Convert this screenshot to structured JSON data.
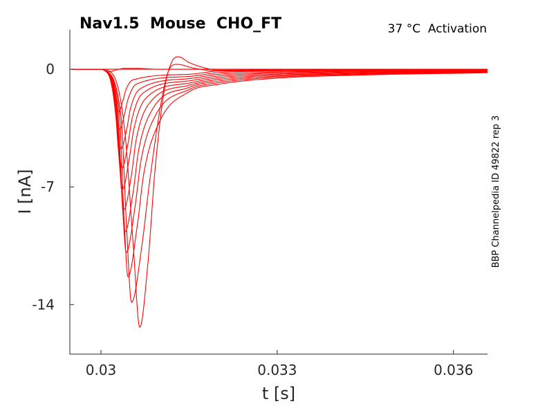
{
  "chart_data": {
    "type": "line",
    "title": "Nav1.5  Mouse  CHO_FT",
    "subtitle": "37 °C  Activation",
    "side_label": "BBP Channelpedia ID 49822 rep 3",
    "xlabel": "t [s]",
    "ylabel": "I [nA]",
    "xlim": [
      0.02947,
      0.03658
    ],
    "ylim": [
      -16.95,
      2.35
    ],
    "xticks": [
      {
        "value": 0.03,
        "label": "0.03"
      },
      {
        "value": 0.033,
        "label": "0.033"
      },
      {
        "value": 0.036,
        "label": "0.036"
      }
    ],
    "yticks": [
      {
        "value": 0,
        "label": "0"
      },
      {
        "value": -7,
        "label": "-7"
      },
      {
        "value": -14,
        "label": "-14"
      }
    ],
    "grid": false,
    "line_color": "#ff0000",
    "series": [
      {
        "name": "trace 1",
        "points": [
          [
            0.0295,
            0
          ],
          [
            0.03,
            0
          ],
          [
            0.03005,
            -0.05
          ],
          [
            0.03015,
            -0.51
          ],
          [
            0.03023,
            -1.78
          ],
          [
            0.0303,
            -2.54
          ],
          [
            0.03037,
            -1.91
          ],
          [
            0.03042,
            -1.27
          ],
          [
            0.03054,
            -0.64
          ],
          [
            0.0315,
            -0.3
          ],
          [
            0.032,
            -0.1
          ],
          [
            0.033,
            -0.05
          ],
          [
            0.0345,
            -0.02
          ],
          [
            0.0366,
            -0.01
          ]
        ]
      },
      {
        "name": "trace 2",
        "points": [
          [
            0.0295,
            0
          ],
          [
            0.03,
            0
          ],
          [
            0.03005,
            -0.05
          ],
          [
            0.03017,
            -0.71
          ],
          [
            0.03025,
            -2.5
          ],
          [
            0.03032,
            -3.57
          ],
          [
            0.0304,
            -2.68
          ],
          [
            0.03046,
            -1.79
          ],
          [
            0.0306,
            -0.89
          ],
          [
            0.0315,
            -0.43
          ],
          [
            0.032,
            -0.2
          ],
          [
            0.033,
            -0.11
          ],
          [
            0.0345,
            -0.06
          ],
          [
            0.0366,
            -0.035
          ]
        ]
      },
      {
        "name": "trace 3",
        "points": [
          [
            0.0295,
            0
          ],
          [
            0.03,
            0
          ],
          [
            0.03005,
            -0.05
          ],
          [
            0.03019,
            -0.95
          ],
          [
            0.03027,
            -3.31
          ],
          [
            0.03034,
            -4.73
          ],
          [
            0.03044,
            -3.55
          ],
          [
            0.0305,
            -2.37
          ],
          [
            0.03066,
            -1.18
          ],
          [
            0.0315,
            -0.56
          ],
          [
            0.032,
            -0.3
          ],
          [
            0.033,
            -0.17
          ],
          [
            0.0345,
            -0.1
          ],
          [
            0.0366,
            -0.06
          ]
        ]
      },
      {
        "name": "trace 4",
        "points": [
          [
            0.0295,
            0
          ],
          [
            0.03,
            0
          ],
          [
            0.03005,
            -0.05
          ],
          [
            0.03021,
            -1.18
          ],
          [
            0.03029,
            -4.12
          ],
          [
            0.03036,
            -5.88
          ],
          [
            0.03046,
            -4.41
          ],
          [
            0.03053,
            -2.94
          ],
          [
            0.0307,
            -1.47
          ],
          [
            0.0315,
            -0.69
          ],
          [
            0.032,
            -0.4
          ],
          [
            0.033,
            -0.23
          ],
          [
            0.0345,
            -0.14
          ],
          [
            0.0366,
            -0.085
          ]
        ]
      },
      {
        "name": "trace 5",
        "points": [
          [
            0.0295,
            0
          ],
          [
            0.03,
            0
          ],
          [
            0.03005,
            -0.05
          ],
          [
            0.03022,
            -1.42
          ],
          [
            0.0303,
            -4.98
          ],
          [
            0.03037,
            -7.12
          ],
          [
            0.03048,
            -5.34
          ],
          [
            0.03056,
            -3.56
          ],
          [
            0.03075,
            -1.78
          ],
          [
            0.0315,
            -0.82
          ],
          [
            0.032,
            -0.5
          ],
          [
            0.033,
            -0.29
          ],
          [
            0.0345,
            -0.18
          ],
          [
            0.0366,
            -0.11
          ]
        ]
      },
      {
        "name": "trace 6",
        "points": [
          [
            0.0295,
            0
          ],
          [
            0.03,
            0
          ],
          [
            0.03005,
            -0.05
          ],
          [
            0.03024,
            -1.67
          ],
          [
            0.03032,
            -5.85
          ],
          [
            0.03039,
            -8.35
          ],
          [
            0.03052,
            -6.26
          ],
          [
            0.0306,
            -4.18
          ],
          [
            0.03081,
            -2.09
          ],
          [
            0.0315,
            -0.95
          ],
          [
            0.032,
            -0.6
          ],
          [
            0.033,
            -0.35
          ],
          [
            0.0345,
            -0.22
          ],
          [
            0.0366,
            -0.135
          ]
        ]
      },
      {
        "name": "trace 7",
        "points": [
          [
            0.0295,
            0
          ],
          [
            0.03,
            0
          ],
          [
            0.03005,
            -0.05
          ],
          [
            0.03026,
            -1.93
          ],
          [
            0.03034,
            -6.77
          ],
          [
            0.03041,
            -9.67
          ],
          [
            0.03055,
            -7.25
          ],
          [
            0.03064,
            -4.84
          ],
          [
            0.03087,
            -2.42
          ],
          [
            0.0315,
            -1.08
          ],
          [
            0.032,
            -0.7
          ],
          [
            0.033,
            -0.41
          ],
          [
            0.0345,
            -0.26
          ],
          [
            0.0366,
            -0.16
          ]
        ]
      },
      {
        "name": "trace 8",
        "points": [
          [
            0.0295,
            0
          ],
          [
            0.03,
            0
          ],
          [
            0.03005,
            -0.05
          ],
          [
            0.03028,
            -2.18
          ],
          [
            0.03036,
            -7.63
          ],
          [
            0.03043,
            -10.9
          ],
          [
            0.03058,
            -8.18
          ],
          [
            0.03068,
            -5.45
          ],
          [
            0.03093,
            -2.73
          ],
          [
            0.0315,
            -1.21
          ],
          [
            0.032,
            -0.8
          ],
          [
            0.033,
            -0.47
          ],
          [
            0.0345,
            -0.3
          ],
          [
            0.0366,
            -0.185
          ]
        ]
      },
      {
        "name": "trace 9",
        "points": [
          [
            0.0295,
            0
          ],
          [
            0.03,
            0
          ],
          [
            0.03005,
            -0.05
          ],
          [
            0.03031,
            -2.47
          ],
          [
            0.03039,
            -8.65
          ],
          [
            0.03046,
            -12.35
          ],
          [
            0.03062,
            -9.26
          ],
          [
            0.03073,
            -6.18
          ],
          [
            0.031,
            -3.09
          ],
          [
            0.0315,
            -1.34
          ],
          [
            0.032,
            -0.9
          ],
          [
            0.033,
            -0.53
          ],
          [
            0.0345,
            -0.34
          ],
          [
            0.0366,
            -0.21
          ]
        ]
      },
      {
        "name": "trace 10",
        "points": [
          [
            0.0295,
            0
          ],
          [
            0.03,
            0
          ],
          [
            0.03005,
            -0.05
          ],
          [
            0.03034,
            -2.77
          ],
          [
            0.03044,
            -9.7
          ],
          [
            0.03052,
            -13.87
          ],
          [
            0.0307,
            -10.4
          ],
          [
            0.03082,
            -6.9
          ],
          [
            0.03105,
            -1.5
          ],
          [
            0.03118,
            0.1
          ],
          [
            0.0313,
            0.29
          ],
          [
            0.0316,
            0.05
          ],
          [
            0.032,
            -0.1
          ],
          [
            0.033,
            -0.1
          ],
          [
            0.0345,
            -0.06
          ],
          [
            0.0366,
            -0.03
          ]
        ]
      },
      {
        "name": "trace 11",
        "points": [
          [
            0.0295,
            0
          ],
          [
            0.03,
            0
          ],
          [
            0.0302,
            -0.3
          ],
          [
            0.0304,
            -3.5
          ],
          [
            0.03055,
            -10.5
          ],
          [
            0.03066,
            -15.35
          ],
          [
            0.0308,
            -11.5
          ],
          [
            0.03092,
            -6
          ],
          [
            0.03108,
            -1.2
          ],
          [
            0.0312,
            0.4
          ],
          [
            0.03132,
            0.74
          ],
          [
            0.0315,
            0.4
          ],
          [
            0.0318,
            0.05
          ],
          [
            0.032,
            -0.05
          ],
          [
            0.033,
            -0.03
          ],
          [
            0.0366,
            0
          ]
        ]
      },
      {
        "name": "trace 12",
        "points": [
          [
            0.0295,
            0
          ],
          [
            0.03,
            0
          ],
          [
            0.03015,
            -0.15
          ],
          [
            0.0302,
            -0.1
          ],
          [
            0.0304,
            0.05
          ],
          [
            0.0306,
            0.05
          ],
          [
            0.031,
            0
          ],
          [
            0.0366,
            0
          ]
        ]
      },
      {
        "name": "trace 13",
        "points": [
          [
            0.0295,
            0
          ],
          [
            0.0366,
            0
          ]
        ]
      }
    ]
  }
}
